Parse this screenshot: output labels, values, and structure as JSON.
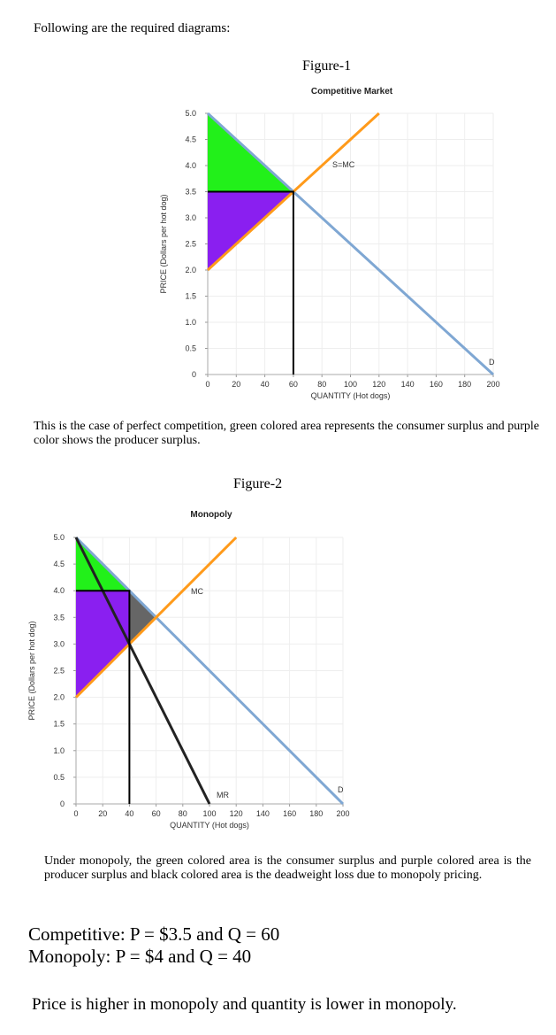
{
  "intro": "Following are the required diagrams:",
  "figure1_caption": "Figure-1",
  "para1": "This is the case of perfect competition, green colored area represents the consumer surplus and purple color shows the producer surplus.",
  "figure2_caption": "Figure-2",
  "para2": "Under monopoly, the green colored area is the consumer surplus and purple colored area is the producer surplus and black colored area is the deadweight loss due to monopoly pricing.",
  "result_competitive": "Competitive: P = $3.5 and Q = 60",
  "result_monopoly": "Monopoly: P = $4 and Q = 40",
  "conclusion": "Price is higher in monopoly and quantity is lower in monopoly.",
  "colors": {
    "demand": "#7fa7d3",
    "supply": "#ff9a1a",
    "consumer_surplus": "#22f01a",
    "producer_surplus": "#8a1ff0",
    "deadweight_loss": "#666666",
    "mr": "#222222"
  },
  "chart_data": [
    {
      "type": "line",
      "title": "Competitive Market",
      "xlabel": "QUANTITY (Hot dogs)",
      "ylabel": "PRICE (Dollars per hot dog)",
      "xlim": [
        0,
        200
      ],
      "ylim": [
        0,
        5
      ],
      "grid": true,
      "xticks": [
        "0",
        "20",
        "40",
        "60",
        "80",
        "100",
        "120",
        "140",
        "160",
        "180",
        "200"
      ],
      "yticks": [
        "0",
        "0.5",
        "1.0",
        "1.5",
        "2.0",
        "2.5",
        "3.0",
        "3.5",
        "4.0",
        "4.5",
        "5.0"
      ],
      "series": [
        {
          "name": "D",
          "x": [
            0,
            200
          ],
          "y": [
            5,
            0
          ]
        },
        {
          "name": "S=MC",
          "x": [
            0,
            120
          ],
          "y": [
            2,
            5
          ]
        }
      ],
      "equilibrium": {
        "q": 60,
        "p": 3.5
      },
      "areas": [
        {
          "kind": "consumer_surplus",
          "points": [
            [
              0,
              5
            ],
            [
              60,
              3.5
            ],
            [
              0,
              3.5
            ]
          ]
        },
        {
          "kind": "producer_surplus",
          "points": [
            [
              0,
              3.5
            ],
            [
              60,
              3.5
            ],
            [
              0,
              2
            ]
          ]
        }
      ]
    },
    {
      "type": "line",
      "title": "Monopoly",
      "xlabel": "QUANTITY (Hot dogs)",
      "ylabel": "PRICE (Dollars per hot dog)",
      "xlim": [
        0,
        200
      ],
      "ylim": [
        0,
        5
      ],
      "grid": true,
      "xticks": [
        "0",
        "20",
        "40",
        "60",
        "80",
        "100",
        "120",
        "140",
        "160",
        "180",
        "200"
      ],
      "yticks": [
        "0",
        "0.5",
        "1.0",
        "1.5",
        "2.0",
        "2.5",
        "3.0",
        "3.5",
        "4.0",
        "4.5",
        "5.0"
      ],
      "series": [
        {
          "name": "D",
          "x": [
            0,
            200
          ],
          "y": [
            5,
            0
          ]
        },
        {
          "name": "MC",
          "x": [
            0,
            120
          ],
          "y": [
            2,
            5
          ]
        },
        {
          "name": "MR",
          "x": [
            0,
            100
          ],
          "y": [
            5,
            0
          ]
        }
      ],
      "equilibrium": {
        "q": 40,
        "p": 4
      },
      "areas": [
        {
          "kind": "consumer_surplus",
          "points": [
            [
              0,
              5
            ],
            [
              40,
              4
            ],
            [
              0,
              4
            ]
          ]
        },
        {
          "kind": "producer_surplus",
          "points": [
            [
              0,
              4
            ],
            [
              40,
              4
            ],
            [
              40,
              3
            ],
            [
              0,
              2
            ]
          ]
        },
        {
          "kind": "deadweight_loss",
          "points": [
            [
              40,
              4
            ],
            [
              60,
              3.5
            ],
            [
              40,
              3
            ]
          ]
        }
      ]
    }
  ]
}
